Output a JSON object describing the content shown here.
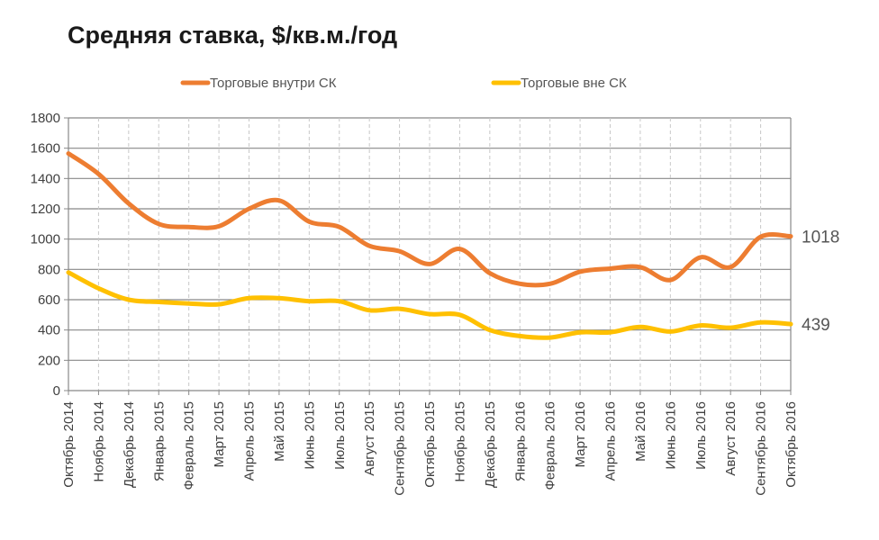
{
  "chart_data": {
    "type": "line",
    "title": "Средняя ставка, $/кв.м./год",
    "xlabel": "",
    "ylabel": "",
    "ylim": [
      0,
      1800
    ],
    "yticks": [
      0,
      200,
      400,
      600,
      800,
      1000,
      1200,
      1400,
      1600,
      1800
    ],
    "grid": true,
    "legend_position": "top",
    "categories": [
      "Октябрь 2014",
      "Ноябрь 2014",
      "Декабрь 2014",
      "Январь 2015",
      "Февраль 2015",
      "Март 2015",
      "Апрель 2015",
      "Май 2015",
      "Июнь 2015",
      "Июль 2015",
      "Август 2015",
      "Сентябрь 2015",
      "Октябрь 2015",
      "Ноябрь 2015",
      "Декабрь 2015",
      "Январь 2016",
      "Февраль 2016",
      "Март 2016",
      "Апрель 2016",
      "Май 2016",
      "Июнь 2016",
      "Июль 2016",
      "Август 2016",
      "Сентябрь 2016",
      "Октябрь 2016"
    ],
    "series": [
      {
        "name": "Торговые внутри СК",
        "color": "#ED7D31",
        "values": [
          1565,
          1430,
          1235,
          1100,
          1080,
          1085,
          1200,
          1255,
          1115,
          1080,
          955,
          920,
          835,
          935,
          775,
          705,
          705,
          785,
          805,
          815,
          730,
          880,
          815,
          1015,
          1018
        ],
        "end_label": "1018"
      },
      {
        "name": "Торговые вне СК",
        "color": "#FFC000",
        "values": [
          780,
          675,
          600,
          585,
          575,
          570,
          610,
          610,
          590,
          590,
          530,
          540,
          505,
          500,
          400,
          360,
          350,
          385,
          385,
          420,
          390,
          430,
          415,
          450,
          439
        ],
        "end_label": "439"
      }
    ]
  }
}
